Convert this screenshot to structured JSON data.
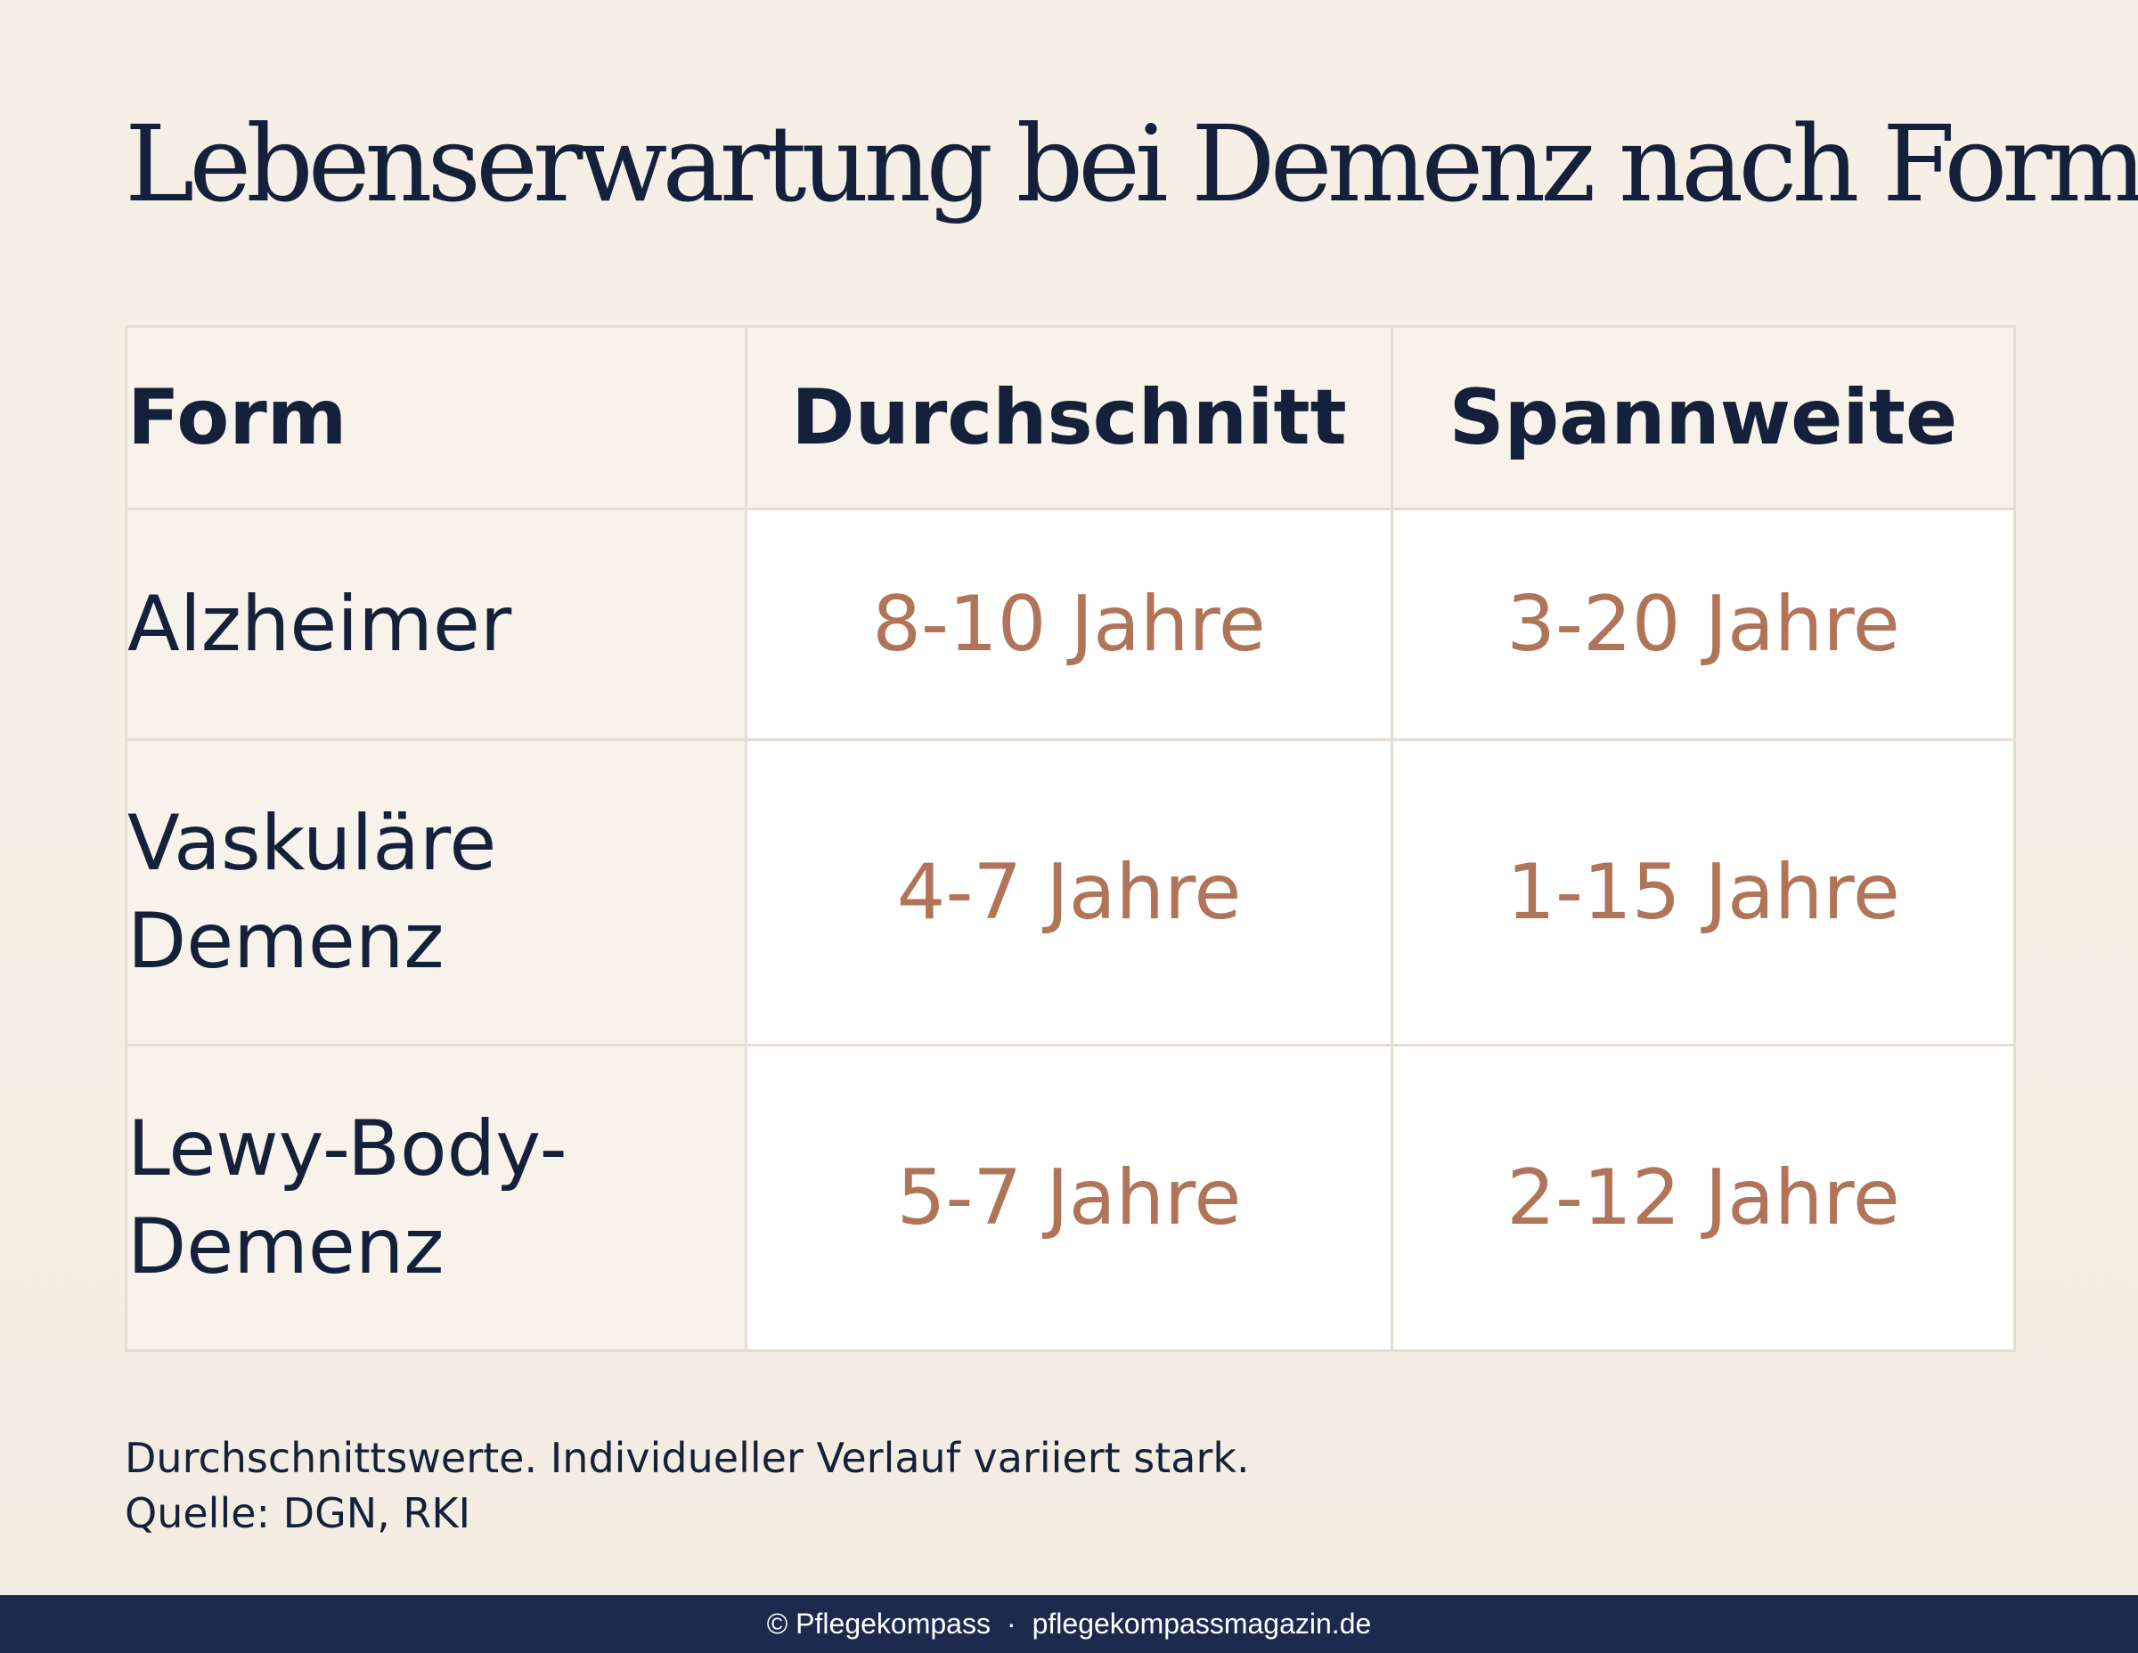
{
  "title": "Lebenserwartung bei Demenz nach Form",
  "table": {
    "headers": {
      "form": "Form",
      "average": "Durchschnitt",
      "range": "Spannweite"
    },
    "rows": [
      {
        "form_lines": [
          "Alzheimer"
        ],
        "average": "8-10 Jahre",
        "range": "3-20 Jahre"
      },
      {
        "form_lines": [
          "Vaskuläre",
          "Demenz"
        ],
        "average": "4-7 Jahre",
        "range": "1-15 Jahre"
      },
      {
        "form_lines": [
          "Lewy-Body-",
          "Demenz"
        ],
        "average": "5-7 Jahre",
        "range": "2-12 Jahre"
      }
    ]
  },
  "note": {
    "line1": "Durchschnittswerte. Individueller Verlauf variiert stark.",
    "line2": "Quelle: DGN, RKI"
  },
  "footer": {
    "copyright": "© Pflegekompass",
    "separator": "·",
    "website": "pflegekompassmagazin.de"
  },
  "colors": {
    "background": "#f4ede3",
    "text": "#15213a",
    "accent_values": "#b07458",
    "footer_bg": "#1d2a4d"
  }
}
